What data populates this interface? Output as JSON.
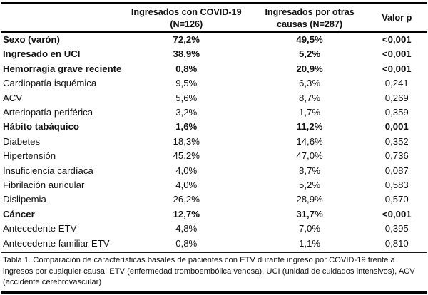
{
  "table": {
    "header": {
      "row_label": "",
      "covid": "Ingresados con COVID-19\n(N=126)",
      "otras": "Ingresados por otras\ncausas (N=287)",
      "valor_p": "Valor p"
    },
    "rows": [
      {
        "label": "Sexo (varón)",
        "covid": "72,2%",
        "otras": "49,5%",
        "p": "<0,001",
        "bold": true
      },
      {
        "label": "Ingresado en UCI",
        "covid": "38,9%",
        "otras": "5,2%",
        "p": "<0,001",
        "bold": true
      },
      {
        "label": "Hemorragia grave reciente",
        "covid": "0,8%",
        "otras": "20,9%",
        "p": "<0,001",
        "bold": true
      },
      {
        "label": "Cardiopatía isquémica",
        "covid": "9,5%",
        "otras": "6,3%",
        "p": "0,241",
        "bold": false
      },
      {
        "label": "ACV",
        "covid": "5,6%",
        "otras": "8,7%",
        "p": "0,269",
        "bold": false
      },
      {
        "label": "Arteriopatía periférica",
        "covid": "3,2%",
        "otras": "1,7%",
        "p": "0,359",
        "bold": false
      },
      {
        "label": "Hábito tabáquico",
        "covid": "1,6%",
        "otras": "11,2%",
        "p": "0,001",
        "bold": true
      },
      {
        "label": "Diabetes",
        "covid": "18,3%",
        "otras": "14,6%",
        "p": "0,352",
        "bold": false
      },
      {
        "label": "Hipertensión",
        "covid": "45,2%",
        "otras": "47,0%",
        "p": "0,736",
        "bold": false
      },
      {
        "label": "Insuficiencia cardíaca",
        "covid": "4,0%",
        "otras": "8,7%",
        "p": "0,087",
        "bold": false
      },
      {
        "label": "Fibrilación auricular",
        "covid": "4,0%",
        "otras": "5,2%",
        "p": "0,583",
        "bold": false
      },
      {
        "label": "Dislipemia",
        "covid": "26,2%",
        "otras": "28,9%",
        "p": "0,570",
        "bold": false
      },
      {
        "label": "Cáncer",
        "covid": "12,7%",
        "otras": "31,7%",
        "p": "<0,001",
        "bold": true
      },
      {
        "label": "Antecedente ETV",
        "covid": "4,8%",
        "otras": "7,0%",
        "p": "0,395",
        "bold": false
      },
      {
        "label": "Antecedente familiar ETV",
        "covid": "0,8%",
        "otras": "1,1%",
        "p": "0,810",
        "bold": false
      }
    ],
    "caption": "Tabla 1. Comparación de características basales de pacientes con ETV durante ingreso por COVID-19 frente a ingresos por cualquier causa. ETV (enfermedad tromboembólica venosa), UCI (unidad de cuidados intensivos), ACV (accidente cerebrovascular)",
    "colors": {
      "text": "#111111",
      "border": "#000000",
      "background": "#ffffff"
    }
  }
}
